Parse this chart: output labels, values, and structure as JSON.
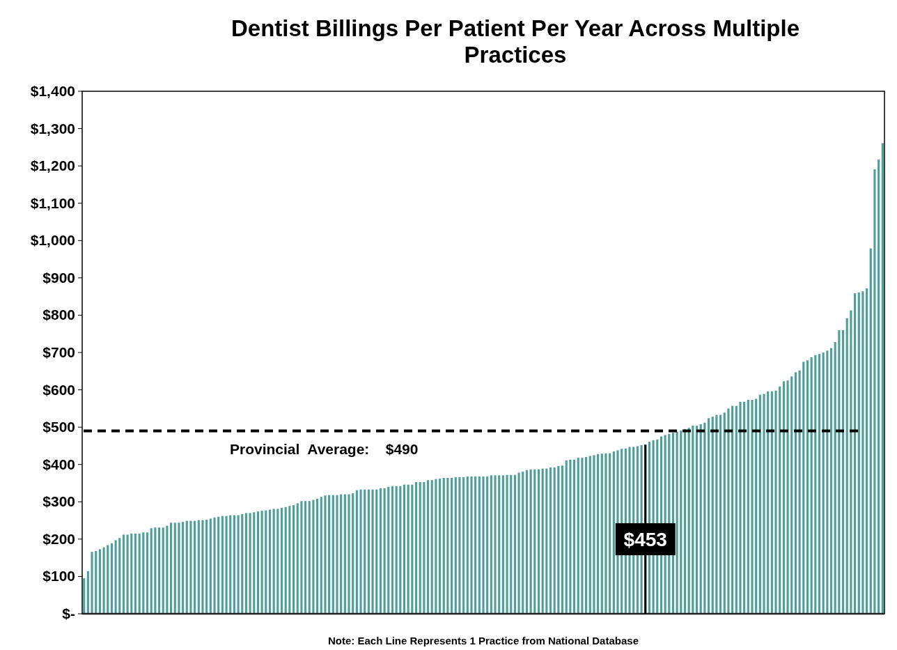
{
  "chart_data": {
    "type": "bar",
    "title": "Dentist Billings Per Patient Per Year Across Multiple Practices",
    "categories": [
      null,
      null,
      null,
      null,
      null,
      null,
      null,
      null,
      null,
      null,
      null,
      null,
      null,
      null,
      null,
      null,
      null,
      null,
      null,
      null,
      null,
      null,
      null,
      null,
      null,
      null,
      null,
      null,
      null,
      null,
      null,
      null,
      null,
      null,
      null,
      null,
      null,
      null,
      null,
      null,
      null,
      null,
      null,
      null,
      null,
      null,
      null,
      null,
      null,
      null,
      null,
      null,
      null,
      null,
      null,
      null,
      null,
      null,
      null,
      null,
      null,
      null,
      null,
      null,
      null,
      null,
      null,
      null,
      null,
      null,
      null,
      null,
      null,
      null,
      null,
      null,
      null,
      null,
      null,
      null,
      null,
      null,
      null,
      null,
      null,
      null,
      null,
      null,
      null,
      null,
      null,
      null,
      null,
      null,
      null,
      null,
      null,
      null,
      null,
      null,
      null,
      null,
      null,
      null,
      null,
      null,
      null,
      null,
      null,
      null,
      null,
      null,
      null,
      null,
      null,
      null,
      null,
      null,
      null,
      null,
      null,
      null,
      null,
      null,
      null,
      null,
      null,
      null,
      null,
      null,
      null,
      null,
      null,
      null,
      null,
      null,
      null,
      null,
      null,
      null,
      null,
      null,
      null,
      null,
      null,
      null,
      null,
      null,
      null,
      null,
      null,
      null,
      null,
      null,
      null,
      null,
      null,
      null,
      null,
      null,
      null,
      null,
      null,
      null,
      null,
      null,
      null,
      null,
      null,
      null,
      null,
      null,
      null,
      null,
      null,
      null,
      null,
      null,
      null,
      null,
      null,
      null,
      null,
      null,
      null,
      null,
      null,
      null,
      null,
      null,
      null,
      null,
      null,
      null,
      null,
      null,
      null,
      null,
      null,
      null,
      null,
      null,
      null
    ],
    "values": [
      95,
      114,
      166,
      168,
      173,
      178,
      184,
      189,
      197,
      203,
      212,
      212,
      215,
      215,
      215,
      218,
      218,
      229,
      231,
      231,
      231,
      236,
      244,
      244,
      244,
      246,
      249,
      249,
      249,
      251,
      251,
      252,
      255,
      258,
      260,
      262,
      262,
      264,
      264,
      264,
      267,
      270,
      270,
      272,
      274,
      276,
      277,
      279,
      281,
      281,
      284,
      286,
      289,
      291,
      296,
      302,
      302,
      302,
      305,
      308,
      313,
      317,
      318,
      318,
      318,
      320,
      320,
      320,
      323,
      331,
      333,
      333,
      333,
      333,
      333,
      336,
      336,
      340,
      342,
      342,
      342,
      346,
      346,
      346,
      353,
      353,
      353,
      358,
      358,
      361,
      362,
      364,
      364,
      364,
      366,
      366,
      366,
      368,
      368,
      368,
      368,
      368,
      368,
      371,
      371,
      371,
      371,
      372,
      372,
      372,
      378,
      381,
      385,
      387,
      387,
      387,
      389,
      389,
      392,
      392,
      396,
      397,
      411,
      413,
      413,
      418,
      418,
      420,
      423,
      425,
      428,
      429,
      430,
      430,
      435,
      438,
      442,
      443,
      447,
      447,
      449,
      452,
      453,
      461,
      465,
      467,
      475,
      479,
      482,
      485,
      488,
      491,
      495,
      498,
      504,
      504,
      508,
      512,
      524,
      528,
      533,
      533,
      539,
      550,
      557,
      557,
      568,
      568,
      573,
      573,
      576,
      587,
      589,
      596,
      596,
      598,
      609,
      623,
      625,
      636,
      647,
      652,
      675,
      679,
      687,
      693,
      696,
      700,
      705,
      712,
      728,
      760,
      760,
      792,
      813,
      859,
      861,
      864,
      872,
      979,
      1191,
      1217,
      1261
    ],
    "color": "#4e9e9a",
    "ylim": [
      0,
      1400
    ],
    "yticks": [
      {
        "value": 0,
        "label": "$-"
      },
      {
        "value": 100,
        "label": "$100"
      },
      {
        "value": 200,
        "label": "$200"
      },
      {
        "value": 300,
        "label": "$300"
      },
      {
        "value": 400,
        "label": "$400"
      },
      {
        "value": 500,
        "label": "$500"
      },
      {
        "value": 600,
        "label": "$600"
      },
      {
        "value": 700,
        "label": "$700"
      },
      {
        "value": 800,
        "label": "$800"
      },
      {
        "value": 900,
        "label": "$900"
      },
      {
        "value": 1000,
        "label": "$1,000"
      },
      {
        "value": 1100,
        "label": "$1,100"
      },
      {
        "value": 1200,
        "label": "$1,200"
      },
      {
        "value": 1300,
        "label": "$1,300"
      },
      {
        "value": 1400,
        "label": "$1,400"
      }
    ],
    "ref_lines": [
      {
        "axis": "y",
        "value": 490,
        "label": "Provincial  Average:    $490",
        "color": "#000000",
        "line_style": "dashed"
      }
    ],
    "value_labels": [
      null,
      null,
      null,
      null,
      null,
      null,
      null,
      null,
      null,
      null,
      null,
      null,
      null,
      null,
      null,
      null,
      null,
      null,
      null,
      null,
      null,
      null,
      null,
      null,
      null,
      null,
      null,
      null,
      null,
      null,
      null,
      null,
      null,
      null,
      null,
      null,
      null,
      null,
      null,
      null,
      null,
      null,
      null,
      null,
      null,
      null,
      null,
      null,
      null,
      null,
      null,
      null,
      null,
      null,
      null,
      null,
      null,
      null,
      null,
      null,
      null,
      null,
      null,
      null,
      null,
      null,
      null,
      null,
      null,
      null,
      null,
      null,
      null,
      null,
      null,
      null,
      null,
      null,
      null,
      null,
      null,
      null,
      null,
      null,
      null,
      null,
      null,
      null,
      null,
      null,
      null,
      null,
      null,
      null,
      null,
      null,
      null,
      null,
      null,
      null,
      null,
      null,
      null,
      null,
      null,
      null,
      null,
      null,
      null,
      null,
      null,
      null,
      null,
      null,
      null,
      null,
      null,
      null,
      null,
      null,
      null,
      null,
      null,
      null,
      null,
      null,
      null,
      null,
      null,
      null,
      null,
      null,
      null,
      null,
      null,
      null,
      null,
      null,
      null,
      null,
      null,
      null,
      "$453",
      null,
      null,
      null,
      null,
      null,
      null,
      null,
      null,
      null,
      null,
      null,
      null,
      null,
      null,
      null,
      null,
      null,
      null,
      null,
      null,
      null,
      null,
      null,
      null,
      null,
      null,
      null,
      null,
      null,
      null,
      null,
      null,
      null,
      null,
      null,
      null,
      null,
      null,
      null,
      null,
      null,
      null,
      null,
      null,
      null,
      null,
      null,
      null,
      null,
      null,
      null,
      null,
      null,
      null,
      null,
      null,
      null,
      null,
      null,
      null
    ],
    "annotations": [
      "Note: Each Line Represents 1 Practice from National Database"
    ],
    "grid": false
  }
}
